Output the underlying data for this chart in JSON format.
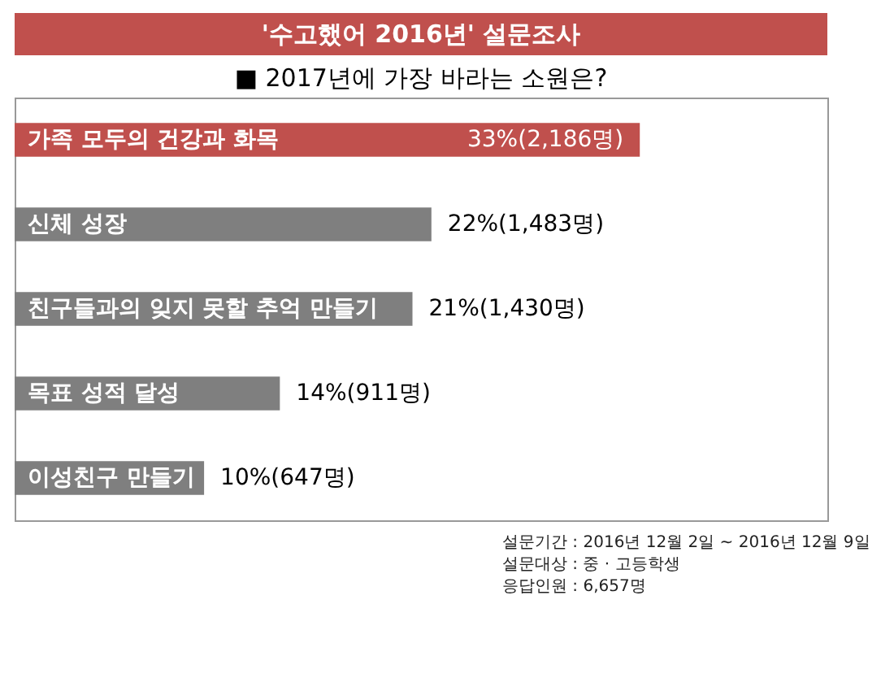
{
  "chart_data": {
    "type": "bar",
    "orientation": "horizontal",
    "title": "'수고했어 2016년' 설문조사",
    "subtitle": "■ 2017년에 가장 바라는 소원은?",
    "categories": [
      "가족 모두의 건강과 화목",
      "신체 성장",
      "친구들과의 잊지 못할 추억 만들기",
      "목표 성적 달성",
      "이성친구 만들기"
    ],
    "values": [
      33,
      22,
      21,
      14,
      10
    ],
    "value_labels": [
      "33%(2,186명)",
      "22%(1,483명)",
      "21%(1,430명)",
      "14%(911명)",
      "10%(647명)"
    ],
    "colors": [
      "#c0504d",
      "#7f7f7f",
      "#7f7f7f",
      "#7f7f7f",
      "#7f7f7f"
    ],
    "annotations": [
      "설문기간 : 2016년 12월 2일 ~ 2016년 12월 9일",
      "설문대상 : 중 · 고등학생",
      "응답인원 : 6,657명"
    ]
  }
}
